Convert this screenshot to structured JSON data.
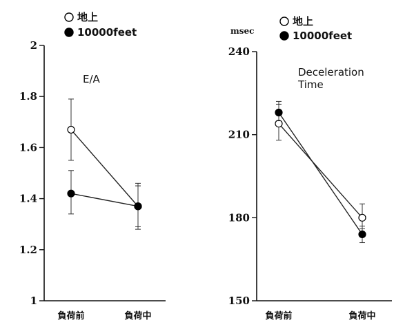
{
  "chart_data": [
    {
      "type": "line",
      "title": "E/A",
      "ylabel": "",
      "xlabel": "",
      "categories": [
        "負荷前",
        "負荷中"
      ],
      "ylim": [
        1,
        2
      ],
      "yticks": [
        "1",
        "1.2",
        "1.4",
        "1.6",
        "1.8",
        "2"
      ],
      "grid": false,
      "legend_position": "top-left",
      "series": [
        {
          "name": "地上",
          "marker": "open-circle",
          "values": [
            1.67,
            1.37
          ],
          "err_low": [
            1.55,
            1.28
          ],
          "err_high": [
            1.79,
            1.46
          ]
        },
        {
          "name": "10000feet",
          "marker": "filled-circle",
          "values": [
            1.42,
            1.37
          ],
          "err_low": [
            1.34,
            1.29
          ],
          "err_high": [
            1.51,
            1.45
          ]
        }
      ]
    },
    {
      "type": "line",
      "title": "Deceleration\nTime",
      "ylabel": "msec",
      "xlabel": "",
      "categories": [
        "負荷前",
        "負荷中"
      ],
      "ylim": [
        150,
        240
      ],
      "yticks": [
        "150",
        "180",
        "210",
        "240"
      ],
      "grid": false,
      "legend_position": "top-left",
      "series": [
        {
          "name": "地上",
          "marker": "open-circle",
          "values": [
            214,
            180
          ],
          "err_low": [
            208,
            176
          ],
          "err_high": [
            221,
            185
          ]
        },
        {
          "name": "10000feet",
          "marker": "filled-circle",
          "values": [
            218,
            174
          ],
          "err_low": [
            215,
            171
          ],
          "err_high": [
            222,
            177
          ]
        }
      ]
    }
  ]
}
